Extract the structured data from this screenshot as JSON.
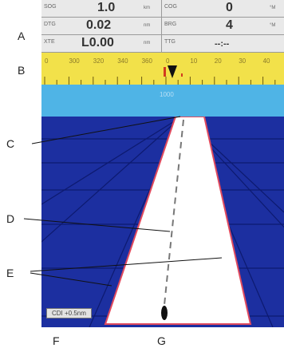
{
  "callouts": {
    "a": "A",
    "b": "B",
    "c": "C",
    "d": "D",
    "e": "E",
    "f": "F",
    "g": "G"
  },
  "data_panel": {
    "rows": [
      {
        "left": {
          "label": "SOG",
          "value": "1.0",
          "unit": "km"
        },
        "right": {
          "label": "COG",
          "value": "0",
          "unit": "°M"
        }
      },
      {
        "left": {
          "label": "DTG",
          "value": "0.02",
          "unit": "nm"
        },
        "right": {
          "label": "BRG",
          "value": "4",
          "unit": "°M"
        }
      },
      {
        "left": {
          "label": "XTE",
          "value": "L0.00",
          "unit": "nm"
        },
        "right": {
          "label": "TTG",
          "value": "--:--",
          "unit": ""
        }
      }
    ]
  },
  "compass_tape": {
    "tick_labels": [
      "0",
      "300",
      "320",
      "340",
      "360",
      "0",
      "10",
      "20",
      "30",
      "40"
    ]
  },
  "sky": {
    "label": "1000"
  },
  "xte_box": {
    "text": "CDI +0.5nm"
  },
  "colors": {
    "tape": "#f2e14a",
    "sky": "#4fb4e6",
    "water": "#1c2fa0",
    "course_lane": "#ffffff",
    "lane_edge": "#e04a5e",
    "vessel": "#111111"
  }
}
